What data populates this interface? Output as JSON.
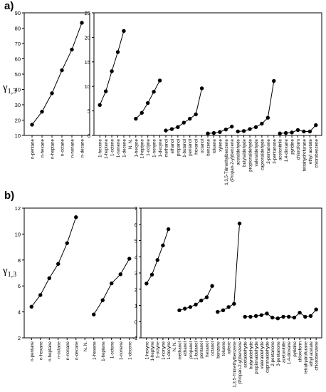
{
  "panels": {
    "a": {
      "label": "a)",
      "ylabel": "γ1,3",
      "ylabel_symbol": "γ",
      "ylabel_sub": "1,3"
    },
    "b": {
      "label": "b)",
      "ylabel": "γ1,3",
      "ylabel_symbol": "γ",
      "ylabel_sub": "1,3"
    }
  },
  "colors": {
    "line": "#000000",
    "marker": "#000000",
    "axis": "#000000"
  },
  "chart_data": [
    {
      "panel": "a",
      "type": "line",
      "ylim": [
        10,
        90
      ],
      "yticks": [
        10,
        20,
        30,
        40,
        50,
        60,
        70,
        80,
        90
      ],
      "categories": [
        "n-pentane",
        "n-hexane",
        "n-heptane",
        "n-octane",
        "n-nonane",
        "n-decane"
      ],
      "series": [
        {
          "values": [
            17,
            25.5,
            37.5,
            52.5,
            66,
            83.5
          ]
        }
      ]
    },
    {
      "panel": "a",
      "type": "line",
      "ylim": [
        0,
        25
      ],
      "yticks": [
        0,
        5,
        10,
        15,
        20,
        25
      ],
      "categories": [
        "1-hexene",
        "1-heptene",
        "1-octene",
        "1-nonene",
        "1-decene",
        "N. N.",
        "1-hexyne",
        "1-heptyne",
        "1-octyne",
        "1-nonyne",
        "1-decyne",
        "methanol",
        "ethanol",
        "propanol",
        "1-butanol",
        "pentanol",
        "hexanol",
        "octanol",
        "benzene",
        "toluene",
        "xylene",
        "1,3,5-Trimethylbenzene",
        "(Propan-2-yl)benzene",
        "acetaldehyde",
        "butyraldehyde",
        "propionaldehyde",
        "valeraldehyde",
        "capronaldehyde",
        "2-pentanone",
        "3-pentanone",
        "acetonitrile",
        "1,4-dioxane",
        "pyridine",
        "chloroform",
        "tetrahydrofurane",
        "ethyl acetate",
        "chlorobenzene"
      ],
      "series": [
        {
          "values": [
            6.2,
            9.0,
            13.1,
            17.0,
            21.3,
            null,
            null,
            null,
            null,
            null,
            null,
            null,
            null,
            null,
            null,
            null,
            null,
            null,
            null,
            null,
            null,
            null,
            null,
            null,
            null,
            null,
            null,
            null,
            null,
            null,
            null,
            null,
            null,
            null,
            null,
            null,
            null
          ]
        },
        {
          "values": [
            null,
            null,
            null,
            null,
            null,
            null,
            3.4,
            4.6,
            6.6,
            8.9,
            11.2,
            null,
            null,
            null,
            null,
            null,
            null,
            null,
            null,
            null,
            null,
            null,
            null,
            null,
            null,
            null,
            null,
            null,
            null,
            null,
            null,
            null,
            null,
            null,
            null,
            null,
            null
          ]
        },
        {
          "values": [
            null,
            null,
            null,
            null,
            null,
            null,
            null,
            null,
            null,
            null,
            null,
            1.0,
            1.3,
            1.7,
            2.6,
            3.4,
            4.3,
            9.6,
            null,
            null,
            null,
            null,
            null,
            null,
            null,
            null,
            null,
            null,
            null,
            null,
            null,
            null,
            null,
            null,
            null,
            null,
            null
          ]
        },
        {
          "values": [
            null,
            null,
            null,
            null,
            null,
            null,
            null,
            null,
            null,
            null,
            null,
            null,
            null,
            null,
            null,
            null,
            null,
            null,
            0.4,
            0.5,
            0.7,
            1.2,
            1.8,
            null,
            null,
            null,
            null,
            null,
            null,
            null,
            null,
            null,
            null,
            null,
            null,
            null,
            null
          ]
        },
        {
          "values": [
            null,
            null,
            null,
            null,
            null,
            null,
            null,
            null,
            null,
            null,
            null,
            null,
            null,
            null,
            null,
            null,
            null,
            null,
            null,
            null,
            null,
            null,
            null,
            0.8,
            0.9,
            1.3,
            1.7,
            2.4,
            3.6,
            11.1,
            null,
            null,
            null,
            null,
            null,
            null,
            null
          ]
        },
        {
          "values": [
            null,
            null,
            null,
            null,
            null,
            null,
            null,
            null,
            null,
            null,
            null,
            null,
            null,
            null,
            null,
            null,
            null,
            null,
            null,
            null,
            null,
            null,
            null,
            null,
            null,
            null,
            null,
            null,
            null,
            null,
            0.4,
            0.5,
            0.6,
            1.1,
            0.8,
            0.8,
            2.1
          ]
        }
      ]
    },
    {
      "panel": "b",
      "type": "line",
      "ylim": [
        2,
        12
      ],
      "yticks": [
        2,
        4,
        6,
        8,
        10,
        12
      ],
      "categories": [
        "n-pentane",
        "n-hexane",
        "n-heptane",
        "n-octane",
        "n-nonane",
        "n-decane",
        "N. N.",
        "1-hexene",
        "1-heptene",
        "1-octene",
        "1-nonene",
        "1-decene"
      ],
      "series": [
        {
          "values": [
            4.4,
            5.3,
            6.6,
            7.7,
            9.3,
            11.3,
            null,
            null,
            null,
            null,
            null,
            null
          ]
        },
        {
          "values": [
            null,
            null,
            null,
            null,
            null,
            null,
            null,
            3.8,
            4.9,
            6.2,
            6.9,
            8.1
          ]
        }
      ]
    },
    {
      "panel": "b",
      "type": "line",
      "ylim": [
        -1,
        7
      ],
      "yticks": [
        -1,
        0,
        1,
        2,
        3,
        4,
        5,
        6,
        7
      ],
      "categories": [
        "1-hexyne",
        "1-heptyne",
        "1-octyne",
        "1-nonyne",
        "1-decyne",
        "N. N.",
        "methanol",
        "ethanol",
        "propanol",
        "1-butanol",
        "pentanol",
        "hexanol",
        "octanol",
        "benzene",
        "toluene",
        "xylene",
        "1,3,5-Trimethylbenzene",
        "(Propan-2-yl)benzene",
        "acetaldehyde",
        "butyraldehyde",
        "propionaldehyde",
        "valeraldehyde",
        "capronaldehyde",
        "2-pentanone",
        "3-pentanone",
        "acetonitrile",
        "1,4-dioxane",
        "pyridine",
        "chloroform",
        "tetrahydrofurane",
        "ethyl acetate",
        "chlorobenzene"
      ],
      "series": [
        {
          "values": [
            2.35,
            2.9,
            3.8,
            4.7,
            5.7,
            null,
            null,
            null,
            null,
            null,
            null,
            null,
            null,
            null,
            null,
            null,
            null,
            null,
            null,
            null,
            null,
            null,
            null,
            null,
            null,
            null,
            null,
            null,
            null,
            null,
            null,
            null
          ]
        },
        {
          "values": [
            null,
            null,
            null,
            null,
            null,
            null,
            0.7,
            0.8,
            0.9,
            1.05,
            1.3,
            1.5,
            2.2,
            null,
            null,
            null,
            null,
            null,
            null,
            null,
            null,
            null,
            null,
            null,
            null,
            null,
            null,
            null,
            null,
            null,
            null,
            null
          ]
        },
        {
          "values": [
            null,
            null,
            null,
            null,
            null,
            null,
            null,
            null,
            null,
            null,
            null,
            null,
            null,
            0.6,
            0.7,
            0.9,
            1.1,
            6.05,
            null,
            null,
            null,
            null,
            null,
            null,
            null,
            null,
            null,
            null,
            null,
            null,
            null,
            null
          ]
        },
        {
          "values": [
            null,
            null,
            null,
            null,
            null,
            null,
            null,
            null,
            null,
            null,
            null,
            null,
            null,
            null,
            null,
            null,
            null,
            null,
            0.3,
            0.3,
            0.35,
            0.4,
            0.5,
            0.25,
            0.2,
            0.3,
            0.3,
            0.25,
            0.55,
            0.3,
            0.35,
            0.75
          ]
        }
      ]
    }
  ]
}
